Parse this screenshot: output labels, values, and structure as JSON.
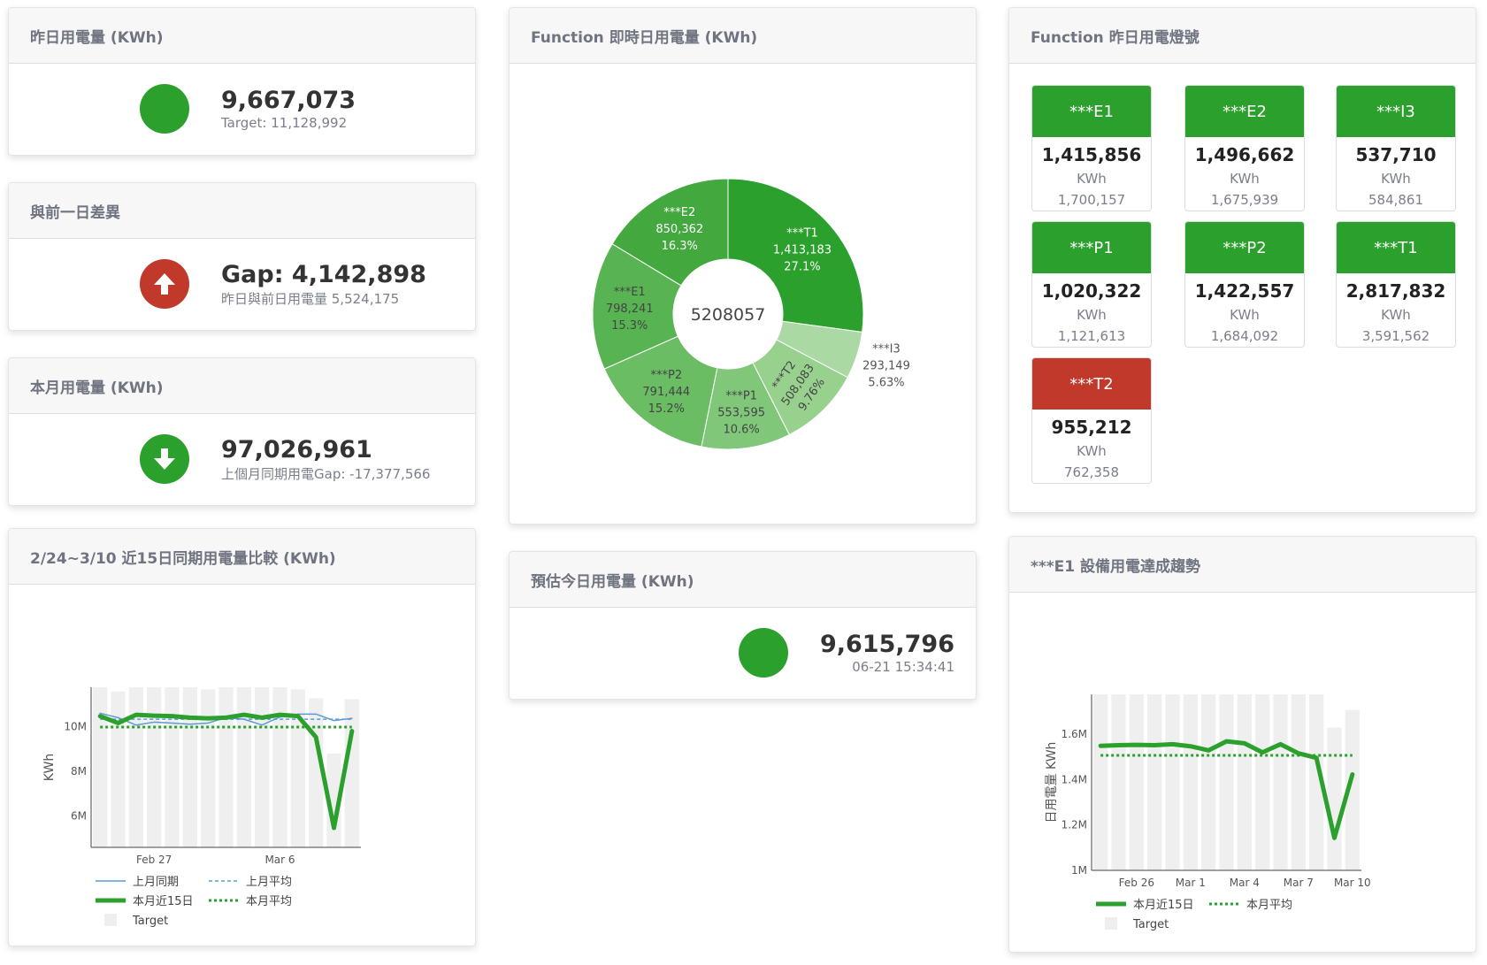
{
  "yesterday": {
    "title": "昨日用電量 (KWh)",
    "value": "9,667,073",
    "target": "Target: 11,128,992",
    "status_color": "#2ca02c"
  },
  "diff": {
    "title": "與前一日差異",
    "value": "Gap: 4,142,898",
    "sub": "昨日與前日用電量 5,524,175",
    "icon": "arrow-up-icon",
    "color": "#c0392b"
  },
  "month": {
    "title": "本月用電量 (KWh)",
    "value": "97,026,961",
    "sub": "上個月同期用電Gap: -17,377,566",
    "icon": "arrow-down-icon",
    "color": "#2ca02c"
  },
  "estimate": {
    "title": "預估今日用電量 (KWh)",
    "value": "9,615,796",
    "time": "06-21 15:34:41",
    "status_color": "#2ca02c"
  },
  "lights": {
    "title": "Function 昨日用電燈號",
    "unit": "KWh",
    "items": [
      {
        "name": "***E1",
        "value": "1,415,856",
        "target": "1,700,157",
        "color": "#2ca02c"
      },
      {
        "name": "***E2",
        "value": "1,496,662",
        "target": "1,675,939",
        "color": "#2ca02c"
      },
      {
        "name": "***I3",
        "value": "537,710",
        "target": "584,861",
        "color": "#2ca02c"
      },
      {
        "name": "***P1",
        "value": "1,020,322",
        "target": "1,121,613",
        "color": "#2ca02c"
      },
      {
        "name": "***P2",
        "value": "1,422,557",
        "target": "1,684,092",
        "color": "#2ca02c"
      },
      {
        "name": "***T1",
        "value": "2,817,832",
        "target": "3,591,562",
        "color": "#2ca02c"
      },
      {
        "name": "***T2",
        "value": "955,212",
        "target": "762,358",
        "color": "#c0392b"
      }
    ]
  },
  "chart_data": [
    {
      "type": "pie",
      "title": "Function 即時日用電量 (KWh)",
      "center_label": "5208057",
      "hole": true,
      "slices": [
        {
          "label": "***T1",
          "value": "1,413,183",
          "pct": "27.1%",
          "v": 1413183,
          "color": "#2ca02c"
        },
        {
          "label": "***I3",
          "value": "293,149",
          "pct": "5.63%",
          "v": 293149,
          "color": "#abd9a3"
        },
        {
          "label": "***T2",
          "value": "508,083",
          "pct": "9.76%",
          "v": 508083,
          "color": "#98d08e"
        },
        {
          "label": "***P1",
          "value": "553,595",
          "pct": "10.6%",
          "v": 553595,
          "color": "#80c77a"
        },
        {
          "label": "***P2",
          "value": "791,444",
          "pct": "15.2%",
          "v": 791444,
          "color": "#6bbd64"
        },
        {
          "label": "***E1",
          "value": "798,241",
          "pct": "15.3%",
          "v": 798241,
          "color": "#58b453"
        },
        {
          "label": "***E2",
          "value": "850,362",
          "pct": "16.3%",
          "v": 850362,
          "color": "#43a83e"
        }
      ]
    },
    {
      "type": "line",
      "title": "2/24~3/10 近15日同期用電量比較 (KWh)",
      "ylabel": "KWh",
      "ylim": [
        4.6,
        11.76
      ],
      "yunit": "M",
      "x": [
        "Feb 24",
        "Feb 25",
        "Feb 26",
        "Feb 27",
        "Feb 28",
        "Mar 1",
        "Mar 2",
        "Mar 3",
        "Mar 4",
        "Mar 5",
        "Mar 6",
        "Mar 7",
        "Mar 8",
        "Mar 9",
        "Mar 10"
      ],
      "xticks": [
        "Feb 27",
        "Mar 6"
      ],
      "yticks": [
        6,
        8,
        10
      ],
      "ytick_labels": [
        "6M",
        "8M",
        "10M"
      ],
      "target": [
        11.76,
        11.57,
        11.76,
        11.76,
        11.76,
        11.76,
        11.67,
        11.76,
        11.76,
        11.76,
        11.76,
        11.67,
        11.27,
        8.8,
        11.23
      ],
      "series": [
        {
          "name": "上月同期",
          "values": [
            10.6,
            10.4,
            10.07,
            10.2,
            10.16,
            10.11,
            10.16,
            10.4,
            10.33,
            10.07,
            10.43,
            10.56,
            10.56,
            10.27,
            10.37
          ],
          "color": "#5b9bd5",
          "style": "thin"
        },
        {
          "name": "上月平均",
          "values": 10.33,
          "color": "#5b9bd5",
          "style": "dash"
        },
        {
          "name": "本月近15日",
          "values": [
            10.47,
            10.16,
            10.53,
            10.49,
            10.47,
            10.4,
            10.37,
            10.4,
            10.53,
            10.4,
            10.53,
            10.47,
            9.53,
            5.47,
            9.8
          ],
          "color": "#2ca02c",
          "style": "thick"
        },
        {
          "name": "本月平均",
          "values": 9.98,
          "color": "#2ca02c",
          "style": "dot"
        }
      ],
      "target_name": "Target"
    },
    {
      "type": "line",
      "title": "***E1 設備用電達成趨勢",
      "ylabel": "日用電量 KWh",
      "ylim": [
        1.0,
        1.776
      ],
      "yunit": "M",
      "x": [
        "Feb 24",
        "Feb 25",
        "Feb 26",
        "Feb 27",
        "Feb 28",
        "Mar 1",
        "Mar 2",
        "Mar 3",
        "Mar 4",
        "Mar 5",
        "Mar 6",
        "Mar 7",
        "Mar 8",
        "Mar 9",
        "Mar 10"
      ],
      "xticks": [
        "Feb 26",
        "Mar 1",
        "Mar 4",
        "Mar 7",
        "Mar 10"
      ],
      "yticks": [
        1,
        1.2,
        1.4,
        1.6
      ],
      "ytick_labels": [
        "1M",
        "1.2M",
        "1.4M",
        "1.6M"
      ],
      "target": [
        1.776,
        1.776,
        1.776,
        1.776,
        1.776,
        1.776,
        1.776,
        1.776,
        1.776,
        1.776,
        1.776,
        1.776,
        1.776,
        1.629,
        1.707
      ],
      "series": [
        {
          "name": "本月近15日",
          "values": [
            1.549,
            1.552,
            1.553,
            1.552,
            1.556,
            1.547,
            1.529,
            1.569,
            1.56,
            1.52,
            1.556,
            1.516,
            1.496,
            1.143,
            1.423
          ],
          "color": "#2ca02c",
          "style": "thick"
        },
        {
          "name": "本月平均",
          "values": 1.507,
          "color": "#2ca02c",
          "style": "dot"
        }
      ],
      "target_name": "Target"
    }
  ]
}
